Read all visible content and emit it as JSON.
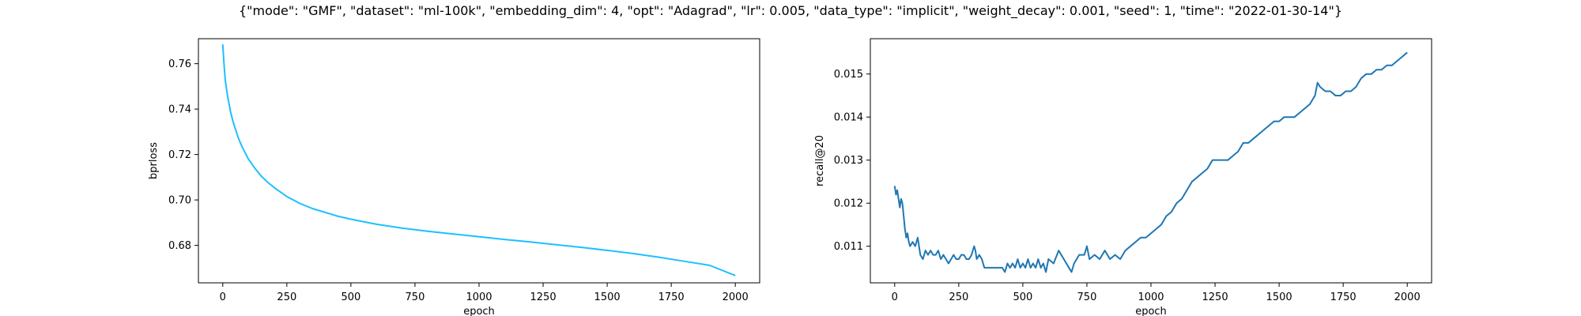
{
  "figure": {
    "title": "{\"mode\": \"GMF\", \"dataset\": \"ml-100k\", \"embedding_dim\": 4, \"opt\": \"Adagrad\", \"lr\": 0.005, \"data_type\": \"implicit\", \"weight_decay\": 0.001, \"seed\": 1, \"time\": \"2022-01-30-14\"}"
  },
  "chart_data": [
    {
      "type": "line",
      "xlabel": "epoch",
      "ylabel": "bprloss",
      "xlim": [
        -95,
        2095
      ],
      "ylim": [
        0.6635,
        0.771
      ],
      "xticks": [
        0,
        250,
        500,
        750,
        1000,
        1250,
        1500,
        1750,
        2000
      ],
      "yticks": [
        0.68,
        0.7,
        0.72,
        0.74,
        0.76
      ],
      "ytick_labels": [
        "0.68",
        "0.70",
        "0.72",
        "0.74",
        "0.76"
      ],
      "color": "#1fbfff",
      "grid": false,
      "series": [
        {
          "x": [
            0,
            5,
            10,
            20,
            30,
            40,
            50,
            60,
            75,
            100,
            125,
            150,
            175,
            200,
            250,
            300,
            350,
            400,
            450,
            500,
            600,
            700,
            800,
            900,
            1000,
            1100,
            1200,
            1300,
            1400,
            1500,
            1600,
            1700,
            1800,
            1900,
            2000
          ],
          "y": [
            0.7685,
            0.7595,
            0.7525,
            0.745,
            0.739,
            0.7345,
            0.731,
            0.7275,
            0.7235,
            0.718,
            0.714,
            0.7105,
            0.7078,
            0.7055,
            0.7015,
            0.6985,
            0.6962,
            0.6945,
            0.6928,
            0.6915,
            0.6893,
            0.6876,
            0.6862,
            0.685,
            0.6838,
            0.6826,
            0.6815,
            0.6803,
            0.6791,
            0.6778,
            0.6764,
            0.6748,
            0.673,
            0.6712,
            0.6667
          ]
        }
      ]
    },
    {
      "type": "line",
      "xlabel": "epoch",
      "ylabel": "recall@20",
      "xlim": [
        -95,
        2095
      ],
      "ylim": [
        0.01015,
        0.01582
      ],
      "xticks": [
        0,
        250,
        500,
        750,
        1000,
        1250,
        1500,
        1750,
        2000
      ],
      "yticks": [
        0.011,
        0.012,
        0.013,
        0.014,
        0.015
      ],
      "ytick_labels": [
        "0.011",
        "0.012",
        "0.013",
        "0.014",
        "0.015"
      ],
      "color": "#1f77b4",
      "grid": false,
      "series": [
        {
          "x": [
            0,
            5,
            10,
            15,
            20,
            25,
            30,
            35,
            40,
            45,
            50,
            55,
            60,
            70,
            80,
            90,
            100,
            110,
            120,
            130,
            140,
            150,
            160,
            170,
            180,
            190,
            200,
            210,
            220,
            230,
            240,
            250,
            260,
            270,
            280,
            290,
            300,
            305,
            310,
            315,
            320,
            330,
            340,
            350,
            360,
            380,
            400,
            420,
            430,
            440,
            450,
            460,
            470,
            480,
            490,
            500,
            510,
            520,
            530,
            540,
            550,
            560,
            570,
            580,
            590,
            600,
            620,
            640,
            650,
            660,
            670,
            680,
            690,
            700,
            720,
            740,
            750,
            760,
            780,
            800,
            820,
            840,
            860,
            880,
            900,
            920,
            940,
            960,
            980,
            1000,
            1020,
            1040,
            1060,
            1080,
            1100,
            1120,
            1140,
            1160,
            1180,
            1200,
            1220,
            1240,
            1260,
            1280,
            1300,
            1320,
            1340,
            1360,
            1380,
            1400,
            1420,
            1440,
            1460,
            1480,
            1500,
            1520,
            1540,
            1560,
            1580,
            1600,
            1620,
            1640,
            1650,
            1660,
            1680,
            1700,
            1720,
            1740,
            1760,
            1780,
            1800,
            1820,
            1840,
            1860,
            1880,
            1900,
            1920,
            1940,
            1960,
            1980,
            2000
          ],
          "y": [
            0.0124,
            0.0122,
            0.0123,
            0.0121,
            0.0119,
            0.0121,
            0.012,
            0.0117,
            0.0114,
            0.0112,
            0.0113,
            0.0111,
            0.011,
            0.0111,
            0.011,
            0.0112,
            0.0108,
            0.0107,
            0.0109,
            0.0108,
            0.0109,
            0.0108,
            0.0108,
            0.0109,
            0.0107,
            0.0108,
            0.0107,
            0.0106,
            0.0107,
            0.0108,
            0.0107,
            0.0107,
            0.0108,
            0.0108,
            0.0107,
            0.0107,
            0.0108,
            0.0109,
            0.011,
            0.0109,
            0.0107,
            0.0108,
            0.0107,
            0.0105,
            0.0105,
            0.0105,
            0.0105,
            0.0105,
            0.0104,
            0.0106,
            0.0105,
            0.0106,
            0.0105,
            0.0107,
            0.0105,
            0.0106,
            0.0105,
            0.0107,
            0.0105,
            0.0106,
            0.0105,
            0.0107,
            0.0105,
            0.0106,
            0.0104,
            0.0107,
            0.0106,
            0.0109,
            0.0108,
            0.0107,
            0.0106,
            0.0105,
            0.0104,
            0.0106,
            0.0108,
            0.0108,
            0.011,
            0.0107,
            0.0108,
            0.0107,
            0.0109,
            0.0107,
            0.0108,
            0.0107,
            0.0109,
            0.011,
            0.0111,
            0.0112,
            0.0112,
            0.0113,
            0.0114,
            0.0115,
            0.0117,
            0.0118,
            0.012,
            0.0121,
            0.0123,
            0.0125,
            0.0126,
            0.0127,
            0.0128,
            0.013,
            0.013,
            0.013,
            0.013,
            0.0131,
            0.0132,
            0.0134,
            0.0134,
            0.0135,
            0.0136,
            0.0137,
            0.0138,
            0.0139,
            0.0139,
            0.014,
            0.014,
            0.014,
            0.0141,
            0.0142,
            0.0143,
            0.0145,
            0.0148,
            0.0147,
            0.0146,
            0.0146,
            0.0145,
            0.0145,
            0.0146,
            0.0146,
            0.0147,
            0.0149,
            0.015,
            0.015,
            0.0151,
            0.0151,
            0.0152,
            0.0152,
            0.0153,
            0.0154,
            0.0155
          ]
        }
      ]
    }
  ]
}
